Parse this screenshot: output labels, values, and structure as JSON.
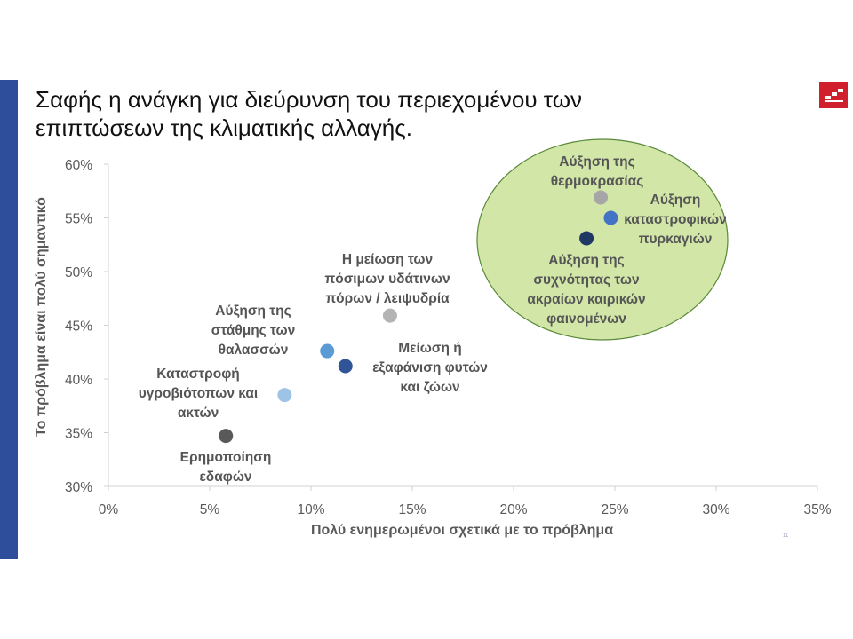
{
  "slide": {
    "title_line1": "Σαφής η ανάγκη για διεύρυνση του περιεχομένου των",
    "title_line2": "επιπτώσεων της κλιματικής αλλαγής.",
    "page_number": "11"
  },
  "colors": {
    "side_bar": "#2e4d9a",
    "logo": "#d0202e",
    "highlight_fill": "#d2e6a8",
    "highlight_stroke": "#5a8a3a"
  },
  "chart_data": {
    "type": "scatter",
    "xlabel": "Πολύ ενημερωμένοι σχετικά με το πρόβλημα",
    "ylabel": "Το πρόβλημα είναι πολύ σημαντικό",
    "xlim": [
      0,
      35
    ],
    "ylim": [
      30,
      60
    ],
    "x_ticks": [
      "0%",
      "5%",
      "10%",
      "15%",
      "20%",
      "25%",
      "30%",
      "35%"
    ],
    "y_ticks": [
      "30%",
      "35%",
      "40%",
      "45%",
      "50%",
      "55%",
      "60%"
    ],
    "grid": false,
    "points": [
      {
        "x": 24.3,
        "y": 56.9,
        "color": "#a6a6a6",
        "label": [
          "Αύξηση της",
          "θερμοκρασίας"
        ]
      },
      {
        "x": 24.8,
        "y": 55.0,
        "color": "#4472c4",
        "label": [
          "Αύξηση",
          "καταστροφικών",
          "πυρκαγιών"
        ]
      },
      {
        "x": 23.6,
        "y": 53.1,
        "color": "#203864",
        "label": [
          "Αύξηση της",
          "συχνότητας των",
          "ακραίων καιρικών",
          "φαινομένων"
        ]
      },
      {
        "x": 13.9,
        "y": 45.9,
        "color": "#b4b4b4",
        "label": [
          "Η μείωση των",
          "πόσιμων υδάτινων",
          "πόρων / λειψυδρία"
        ]
      },
      {
        "x": 10.8,
        "y": 42.6,
        "color": "#5b9bd5",
        "label": [
          "Αύξηση της",
          "στάθμης των",
          "θαλασσών"
        ]
      },
      {
        "x": 11.7,
        "y": 41.2,
        "color": "#2f5597",
        "label": [
          "Μείωση ή",
          "εξαφάνιση φυτών",
          "και ζώων"
        ]
      },
      {
        "x": 8.7,
        "y": 38.5,
        "color": "#9dc3e6",
        "label": [
          "Καταστροφή",
          "υγροβιότοπων και",
          "ακτών"
        ]
      },
      {
        "x": 5.8,
        "y": 34.7,
        "color": "#595959",
        "label": [
          "Ερημοποίηση",
          "εδαφών"
        ]
      }
    ],
    "highlight": "ellipse around the three top-right points"
  }
}
